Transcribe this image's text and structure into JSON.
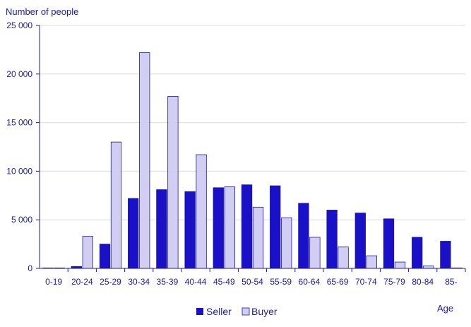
{
  "chart_data": {
    "type": "bar",
    "ylabel": "Number  of people",
    "xlabel": "Age",
    "categories": [
      "0-19",
      "20-24",
      "25-29",
      "30-34",
      "35-39",
      "40-44",
      "45-49",
      "50-54",
      "55-59",
      "60-64",
      "65-69",
      "70-74",
      "75-79",
      "80-84",
      "85-"
    ],
    "series": [
      {
        "name": "Seller",
        "color": "#1a10c8",
        "values": [
          50,
          200,
          2500,
          7200,
          8100,
          7900,
          8300,
          8600,
          8500,
          6700,
          6000,
          5700,
          5100,
          3200,
          2800
        ]
      },
      {
        "name": "Buyer",
        "color": "#d2cdf2",
        "values": [
          50,
          3300,
          13000,
          22200,
          17700,
          11700,
          8400,
          6300,
          5200,
          3200,
          2200,
          1300,
          650,
          250,
          50
        ]
      }
    ],
    "ylim": [
      0,
      25000
    ],
    "yticks": [
      0,
      5000,
      10000,
      15000,
      20000,
      25000
    ],
    "ytick_labels": [
      "0",
      "5 000",
      "10 000",
      "15 000",
      "20 000",
      "25 000"
    ],
    "grid": true,
    "legend": "bottom"
  }
}
